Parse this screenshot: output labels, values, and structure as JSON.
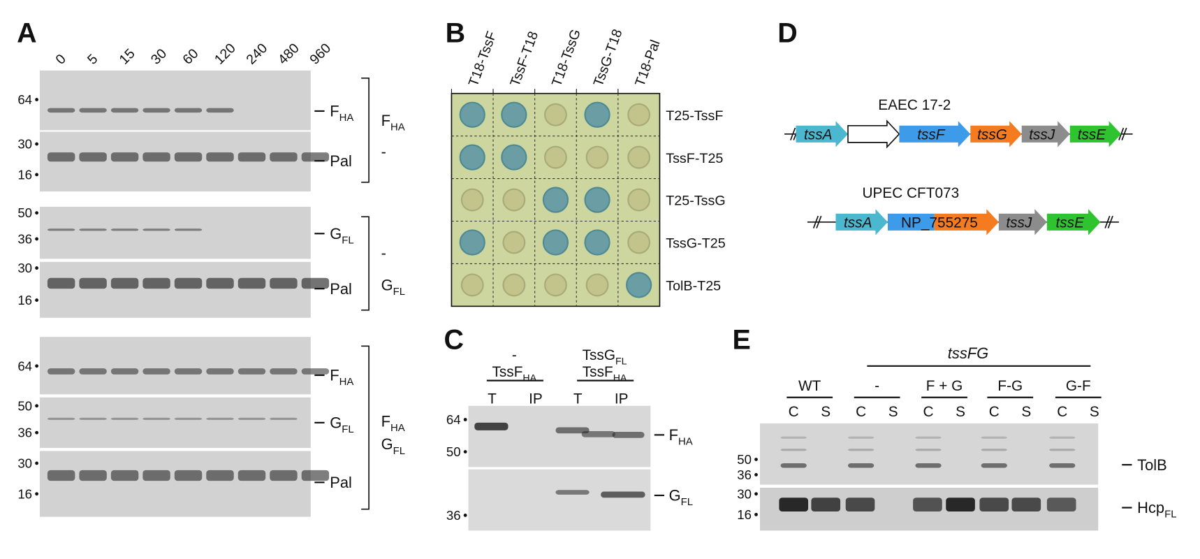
{
  "panel_a": {
    "letter": "A",
    "lanes": [
      "0",
      "5",
      "15",
      "30",
      "60",
      "120",
      "240",
      "480",
      "960"
    ],
    "blocks": [
      {
        "markers": [
          "64",
          "30",
          "16"
        ],
        "labels": [
          {
            "main": "F",
            "sub": "HA"
          },
          {
            "main": "Pal"
          }
        ],
        "group": [
          {
            "main": "F",
            "sub": "HA"
          },
          {
            "main": "-"
          }
        ]
      },
      {
        "markers": [
          "50",
          "36",
          "30",
          "16"
        ],
        "labels": [
          {
            "main": "G",
            "sub": "FL"
          },
          {
            "main": "Pal"
          }
        ],
        "group": [
          {
            "main": "-"
          },
          {
            "main": "G",
            "sub": "FL"
          }
        ]
      },
      {
        "markers": [
          "64",
          "50",
          "36",
          "30",
          "16"
        ],
        "labels": [
          {
            "main": "F",
            "sub": "HA"
          },
          {
            "main": "G",
            "sub": "FL"
          },
          {
            "main": "Pal"
          }
        ],
        "group": [
          {
            "main": "F",
            "sub": "HA"
          },
          {
            "main": "G",
            "sub": "FL"
          }
        ]
      }
    ]
  },
  "panel_b": {
    "letter": "B",
    "columns": [
      "T18-TssF",
      "TssF-T18",
      "T18-TssG",
      "TssG-T18",
      "T18-Pal"
    ],
    "rows": [
      "T25-TssF",
      "TssF-T25",
      "T25-TssG",
      "TssG-T25",
      "TolB-T25"
    ]
  },
  "panel_c": {
    "letter": "C",
    "conditions": [
      {
        "lines": [
          {
            "main": "-"
          },
          {
            "main": "TssF",
            "sub": "HA"
          }
        ]
      },
      {
        "lines": [
          {
            "main": "TssG",
            "sub": "FL"
          },
          {
            "main": "TssF",
            "sub": "HA"
          }
        ]
      }
    ],
    "lanes": [
      "T",
      "IP",
      "T",
      "IP"
    ],
    "markers": [
      "64",
      "50",
      "36"
    ],
    "labels": [
      {
        "main": "F",
        "sub": "HA"
      },
      {
        "main": "G",
        "sub": "FL"
      }
    ]
  },
  "panel_d": {
    "letter": "D",
    "operons": [
      {
        "name": "EAEC 17-2",
        "genes": [
          {
            "label": "tssA",
            "colors": [
              "#4bb8cf"
            ]
          },
          {
            "label": null,
            "colors": [
              "#ffffff"
            ]
          },
          {
            "label": "tssF",
            "colors": [
              "#3d9be9"
            ]
          },
          {
            "label": "tssG",
            "colors": [
              "#f47b20"
            ]
          },
          {
            "label": "tssJ",
            "colors": [
              "#8c8c8c"
            ]
          },
          {
            "label": "tssE",
            "colors": [
              "#2fc42f"
            ]
          }
        ]
      },
      {
        "name": "UPEC CFT073",
        "genes": [
          {
            "label": "tssA",
            "colors": [
              "#4bb8cf"
            ]
          },
          {
            "label": "NP_755275",
            "colors": [
              "#3d9be9",
              "#f47b20"
            ],
            "italic": false
          },
          {
            "label": "tssJ",
            "colors": [
              "#8c8c8c"
            ]
          },
          {
            "label": "tssE",
            "colors": [
              "#2fc42f"
            ]
          }
        ]
      }
    ]
  },
  "panel_e": {
    "letter": "E",
    "mutant": "tssFG",
    "strains": [
      {
        "name": "WT",
        "lanes": [
          "C",
          "S"
        ]
      },
      {
        "name": "-",
        "lanes": [
          "C",
          "S"
        ]
      },
      {
        "name": "F + G",
        "lanes": [
          "C",
          "S"
        ]
      },
      {
        "name": "F-G",
        "lanes": [
          "C",
          "S"
        ]
      },
      {
        "name": "G-F",
        "lanes": [
          "C",
          "S"
        ]
      }
    ],
    "markers": [
      "50",
      "36",
      "30",
      "16"
    ],
    "labels": [
      {
        "main": "TolB"
      },
      {
        "main": "Hcp",
        "sub": "FL"
      }
    ]
  }
}
